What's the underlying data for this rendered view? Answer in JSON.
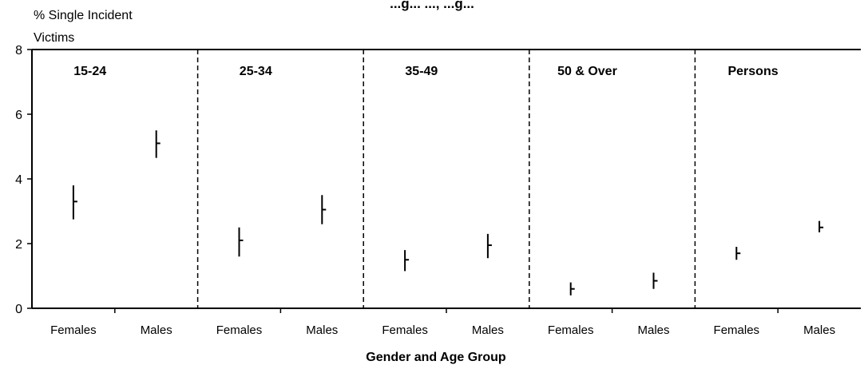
{
  "chart_data": {
    "type": "scatter",
    "title": "...g... ..., ...g...",
    "ylabel_line1": "% Single Incident",
    "ylabel_line2": "Victims",
    "xlabel": "Gender and Age Group",
    "ylim": [
      0,
      8
    ],
    "yticks": [
      "0",
      "2",
      "4",
      "6",
      "8"
    ],
    "grid": false,
    "groups": [
      {
        "label": "15-24",
        "points": [
          {
            "category": "Females",
            "value": 3.3,
            "low": 2.75,
            "high": 3.8
          },
          {
            "category": "Males",
            "value": 5.1,
            "low": 4.65,
            "high": 5.5
          }
        ]
      },
      {
        "label": "25-34",
        "points": [
          {
            "category": "Females",
            "value": 2.1,
            "low": 1.6,
            "high": 2.5
          },
          {
            "category": "Males",
            "value": 3.05,
            "low": 2.6,
            "high": 3.5
          }
        ]
      },
      {
        "label": "35-49",
        "points": [
          {
            "category": "Females",
            "value": 1.5,
            "low": 1.15,
            "high": 1.8
          },
          {
            "category": "Males",
            "value": 1.95,
            "low": 1.55,
            "high": 2.3
          }
        ]
      },
      {
        "label": "50 & Over",
        "points": [
          {
            "category": "Females",
            "value": 0.6,
            "low": 0.4,
            "high": 0.8
          },
          {
            "category": "Males",
            "value": 0.85,
            "low": 0.6,
            "high": 1.1
          }
        ]
      },
      {
        "label": "Persons",
        "points": [
          {
            "category": "Females",
            "value": 1.7,
            "low": 1.5,
            "high": 1.9
          },
          {
            "category": "Males",
            "value": 2.5,
            "low": 2.35,
            "high": 2.7
          }
        ]
      }
    ]
  }
}
